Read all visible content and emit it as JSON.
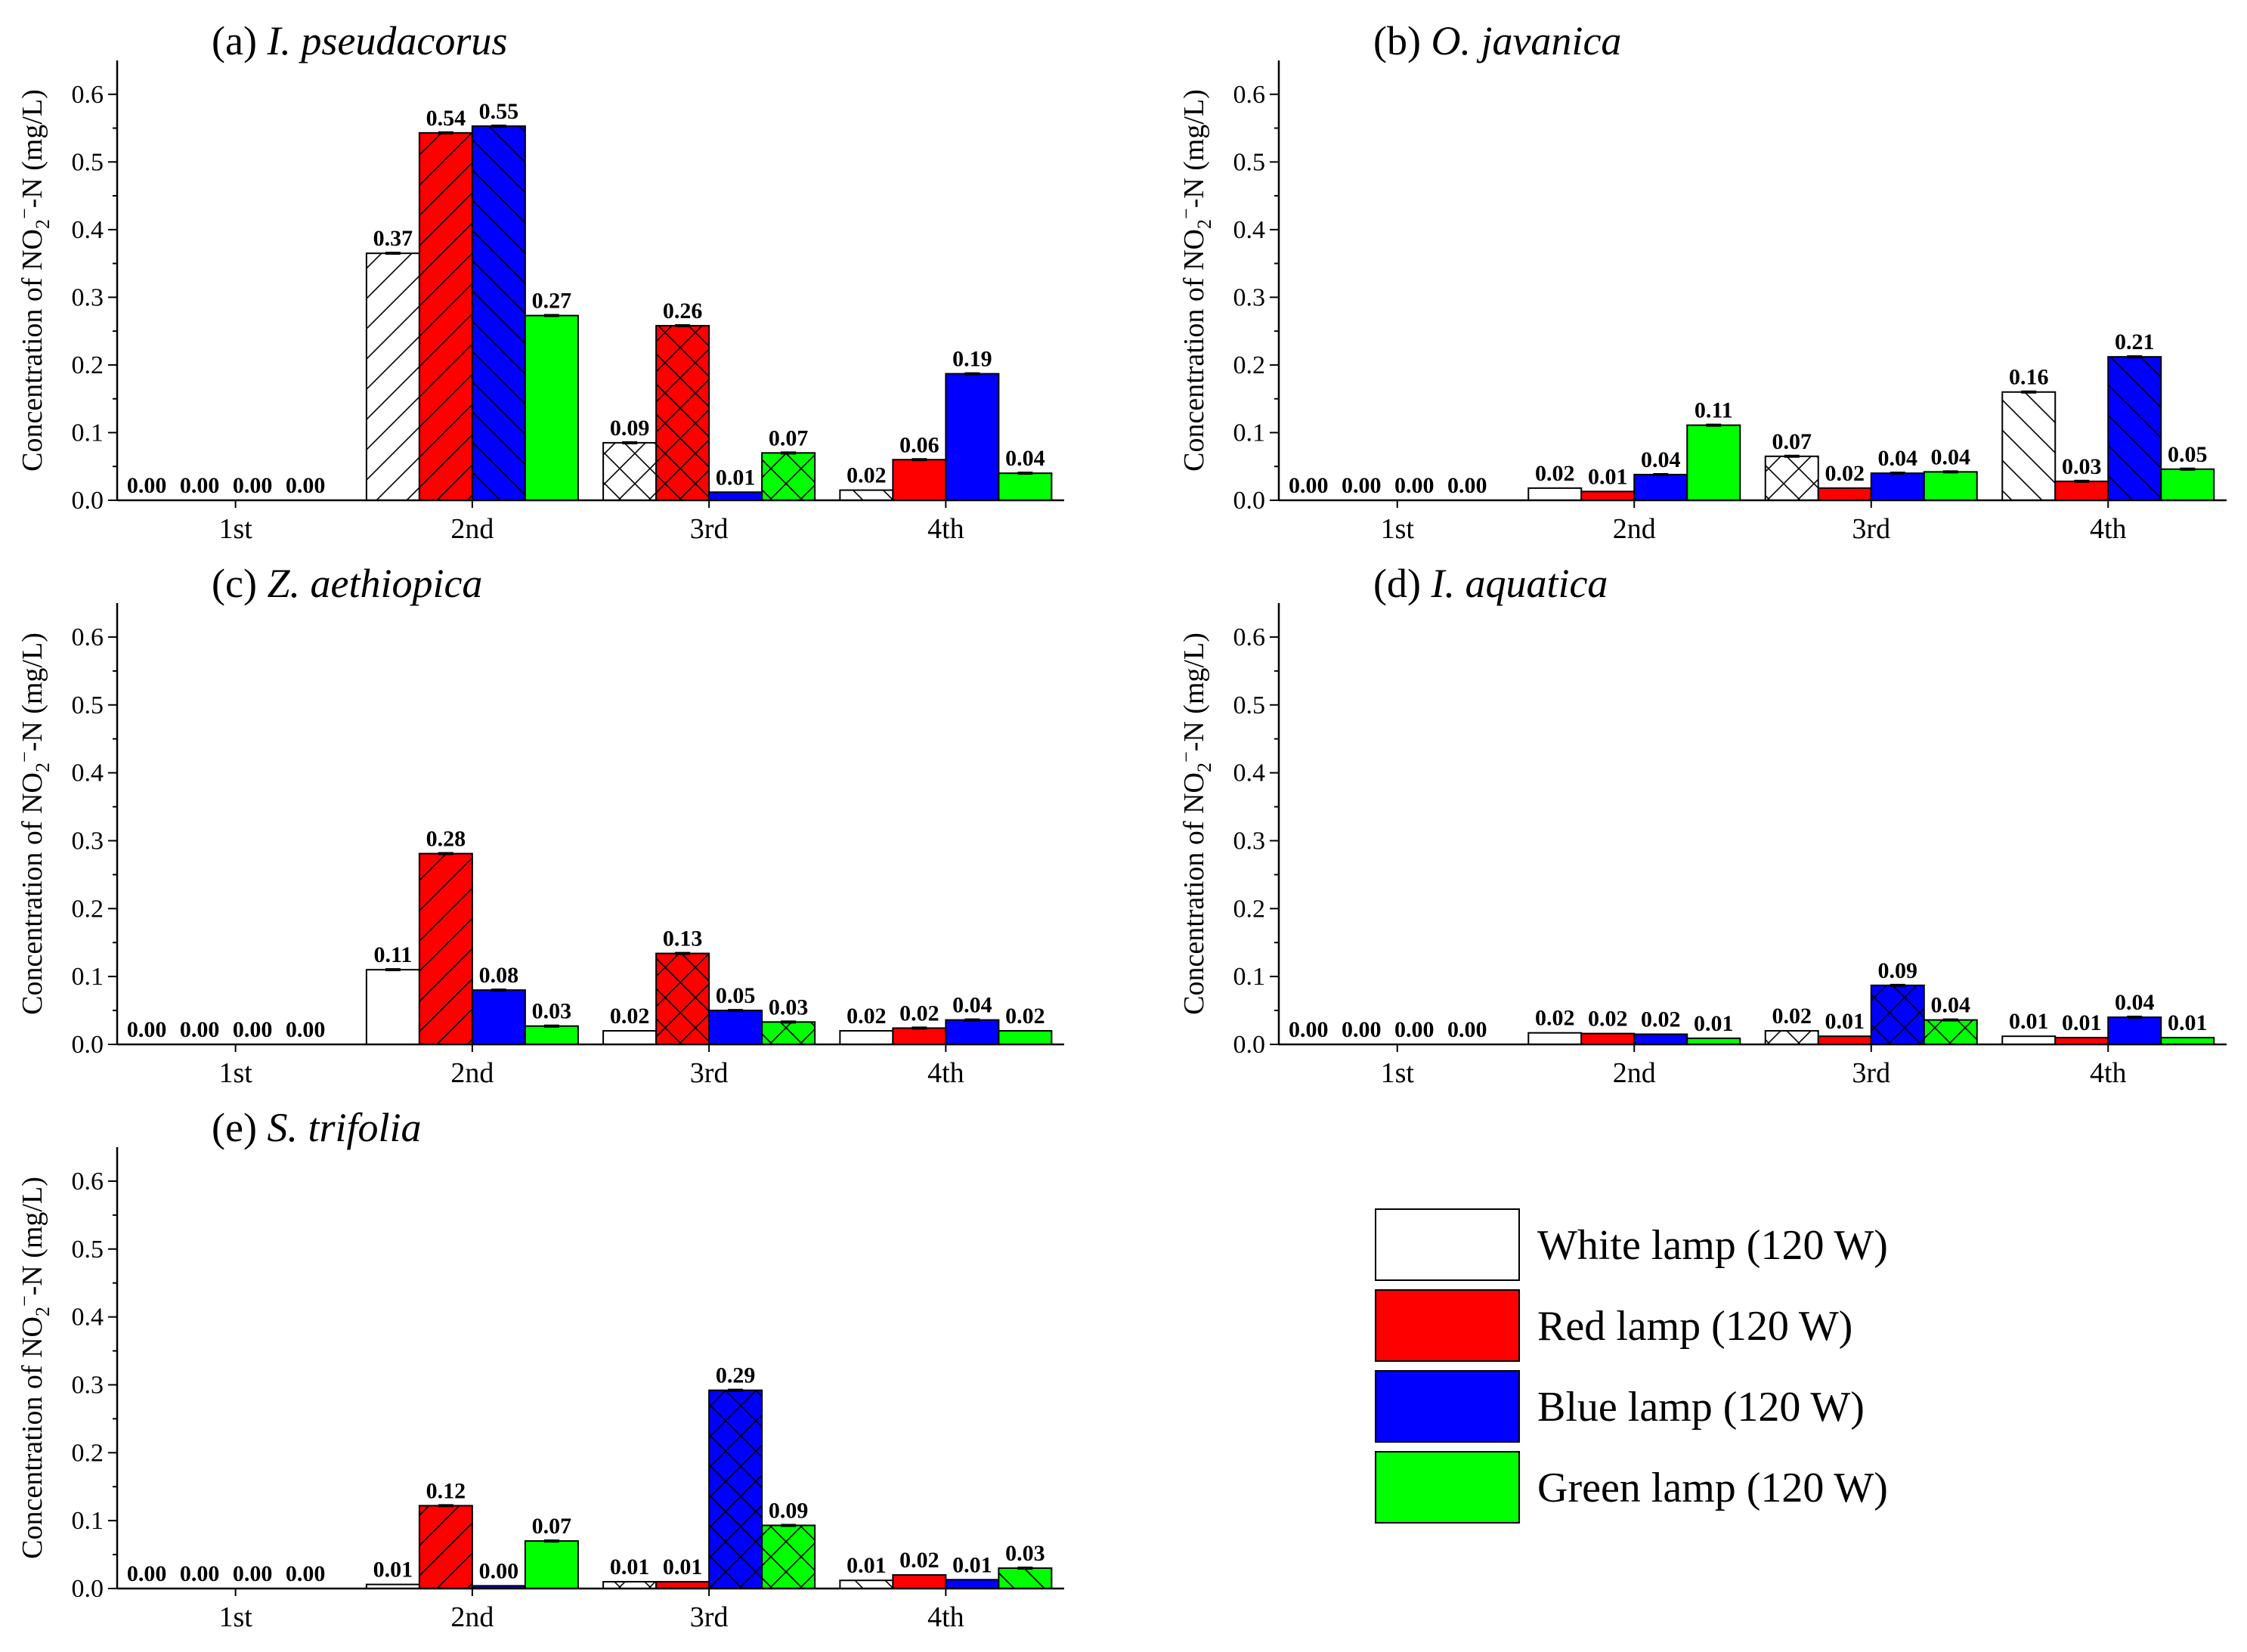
{
  "chart_data": [
    {
      "type": "bar",
      "title": "(a) I. pseudacorus",
      "title_prefix": "(a)",
      "title_species": "I. pseudacorus",
      "categories": [
        "1st",
        "2nd",
        "3rd",
        "4th"
      ],
      "ylim": [
        0,
        0.65
      ],
      "yticks": [
        "0.0",
        "0.1",
        "0.2",
        "0.3",
        "0.4",
        "0.5",
        "0.6"
      ],
      "ylabel": "Concentration of NO2−-N (mg/L)",
      "series": [
        {
          "name": "White lamp (120 W)",
          "values": [
            0.0,
            0.365,
            0.085,
            0.015
          ],
          "labels": [
            "0.00",
            "0.37",
            "0.09",
            "0.02"
          ]
        },
        {
          "name": "Red lamp (120 W)",
          "values": [
            0.0,
            0.543,
            0.258,
            0.06
          ],
          "labels": [
            "0.00",
            "0.54",
            "0.26",
            "0.06"
          ]
        },
        {
          "name": "Blue lamp (120 W)",
          "values": [
            0.0,
            0.553,
            0.012,
            0.187
          ],
          "labels": [
            "0.00",
            "0.55",
            "0.01",
            "0.19"
          ]
        },
        {
          "name": "Green lamp (120 W)",
          "values": [
            0.0,
            0.273,
            0.07,
            0.04
          ],
          "labels": [
            "0.00",
            "0.27",
            "0.07",
            "0.04"
          ]
        }
      ]
    },
    {
      "type": "bar",
      "title": "(b) O. javanica",
      "title_prefix": "(b)",
      "title_species": "O. javanica",
      "categories": [
        "1st",
        "2nd",
        "3rd",
        "4th"
      ],
      "ylim": [
        0,
        0.65
      ],
      "yticks": [
        "0.0",
        "0.1",
        "0.2",
        "0.3",
        "0.4",
        "0.5",
        "0.6"
      ],
      "ylabel": "Concentration of NO2−-N (mg/L)",
      "series": [
        {
          "name": "White lamp (120 W)",
          "values": [
            0.0,
            0.018,
            0.065,
            0.16
          ],
          "labels": [
            "0.00",
            "0.02",
            "0.07",
            "0.16"
          ]
        },
        {
          "name": "Red lamp (120 W)",
          "values": [
            0.0,
            0.013,
            0.018,
            0.028
          ],
          "labels": [
            "0.00",
            "0.01",
            "0.02",
            "0.03"
          ]
        },
        {
          "name": "Blue lamp (120 W)",
          "values": [
            0.0,
            0.038,
            0.04,
            0.212
          ],
          "labels": [
            "0.00",
            "0.04",
            "0.04",
            "0.21"
          ]
        },
        {
          "name": "Green lamp (120 W)",
          "values": [
            0.0,
            0.111,
            0.042,
            0.046
          ],
          "labels": [
            "0.00",
            "0.11",
            "0.04",
            "0.05"
          ]
        }
      ]
    },
    {
      "type": "bar",
      "title": "(c) Z. aethiopica",
      "title_prefix": "(c)",
      "title_species": "Z. aethiopica",
      "categories": [
        "1st",
        "2nd",
        "3rd",
        "4th"
      ],
      "ylim": [
        0,
        0.65
      ],
      "yticks": [
        "0.0",
        "0.1",
        "0.2",
        "0.3",
        "0.4",
        "0.5",
        "0.6"
      ],
      "ylabel": "Concentration of NO2−-N (mg/L)",
      "series": [
        {
          "name": "White lamp (120 W)",
          "values": [
            0.0,
            0.11,
            0.02,
            0.02
          ],
          "labels": [
            "0.00",
            "0.11",
            "0.02",
            "0.02"
          ]
        },
        {
          "name": "Red lamp (120 W)",
          "values": [
            0.0,
            0.281,
            0.134,
            0.024
          ],
          "labels": [
            "0.00",
            "0.28",
            "0.13",
            "0.02"
          ]
        },
        {
          "name": "Blue lamp (120 W)",
          "values": [
            0.0,
            0.08,
            0.05,
            0.036
          ],
          "labels": [
            "0.00",
            "0.08",
            "0.05",
            "0.04"
          ]
        },
        {
          "name": "Green lamp (120 W)",
          "values": [
            0.0,
            0.027,
            0.033,
            0.02
          ],
          "labels": [
            "0.00",
            "0.03",
            "0.03",
            "0.02"
          ]
        }
      ]
    },
    {
      "type": "bar",
      "title": "(d) I. aquatica",
      "title_prefix": "(d)",
      "title_species": "I. aquatica",
      "categories": [
        "1st",
        "2nd",
        "3rd",
        "4th"
      ],
      "ylim": [
        0,
        0.65
      ],
      "yticks": [
        "0.0",
        "0.1",
        "0.2",
        "0.3",
        "0.4",
        "0.5",
        "0.6"
      ],
      "ylabel": "Concentration of NO2−-N (mg/L)",
      "series": [
        {
          "name": "White lamp (120 W)",
          "values": [
            0.0,
            0.017,
            0.02,
            0.012
          ],
          "labels": [
            "0.00",
            "0.02",
            "0.02",
            "0.01"
          ]
        },
        {
          "name": "Red lamp (120 W)",
          "values": [
            0.0,
            0.016,
            0.012,
            0.01
          ],
          "labels": [
            "0.00",
            "0.02",
            "0.01",
            "0.01"
          ]
        },
        {
          "name": "Blue lamp (120 W)",
          "values": [
            0.0,
            0.015,
            0.087,
            0.04
          ],
          "labels": [
            "0.00",
            "0.02",
            "0.09",
            "0.04"
          ]
        },
        {
          "name": "Green lamp (120 W)",
          "values": [
            0.0,
            0.009,
            0.036,
            0.01
          ],
          "labels": [
            "0.00",
            "0.01",
            "0.04",
            "0.01"
          ]
        }
      ]
    },
    {
      "type": "bar",
      "title": "(e) S. trifolia",
      "title_prefix": "(e)",
      "title_species": "S. trifolia",
      "categories": [
        "1st",
        "2nd",
        "3rd",
        "4th"
      ],
      "ylim": [
        0,
        0.65
      ],
      "yticks": [
        "0.0",
        "0.1",
        "0.2",
        "0.3",
        "0.4",
        "0.5",
        "0.6"
      ],
      "ylabel": "Concentration of NO2−-N (mg/L)",
      "series": [
        {
          "name": "White lamp (120 W)",
          "values": [
            0.0,
            0.006,
            0.01,
            0.012
          ],
          "labels": [
            "0.00",
            "0.01",
            "0.01",
            "0.01"
          ]
        },
        {
          "name": "Red lamp (120 W)",
          "values": [
            0.0,
            0.122,
            0.01,
            0.02
          ],
          "labels": [
            "0.00",
            "0.12",
            "0.01",
            "0.02"
          ]
        },
        {
          "name": "Blue lamp (120 W)",
          "values": [
            0.0,
            0.004,
            0.292,
            0.013
          ],
          "labels": [
            "0.00",
            "0.00",
            "0.29",
            "0.01"
          ]
        },
        {
          "name": "Green lamp (120 W)",
          "values": [
            0.0,
            0.07,
            0.093,
            0.03
          ],
          "labels": [
            "0.00",
            "0.07",
            "0.09",
            "0.03"
          ]
        }
      ]
    }
  ],
  "legend": {
    "placement": "bottom-right",
    "items": [
      {
        "label": "White lamp (120 W)",
        "color": "#ffffff"
      },
      {
        "label": "Red lamp (120 W)",
        "color": "#ff0000"
      },
      {
        "label": "Blue lamp (120 W)",
        "color": "#0000ff"
      },
      {
        "label": "Green lamp (120 W)",
        "color": "#00ff00"
      }
    ]
  },
  "ylabel_parts": {
    "before": "Concentration of NO",
    "sub": "2",
    "sup": "−",
    "after": "-N (mg/L)"
  }
}
